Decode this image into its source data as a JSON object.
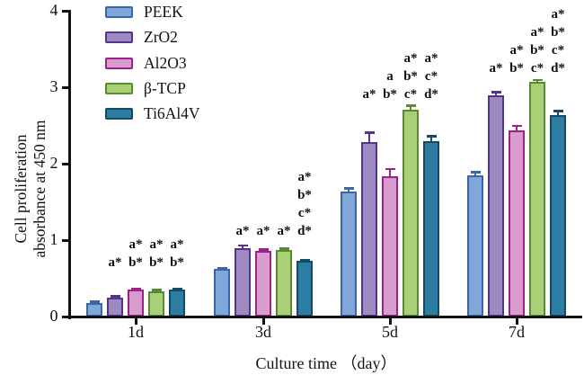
{
  "figure": {
    "background": "#ffffff",
    "axis_color": "#111111",
    "text_color": "#111111"
  },
  "chart_data": {
    "type": "bar",
    "title": "",
    "xlabel": "Culture time （day）",
    "ylabel": "Cell proliferation absorbance at 450 nm",
    "ylabel_lines": [
      "Cell proliferation",
      "absorbance at 450 nm"
    ],
    "ylim": [
      0,
      4
    ],
    "yticks": [
      "0",
      "1",
      "2",
      "3",
      "4"
    ],
    "categories": [
      "1d",
      "3d",
      "5d",
      "7d"
    ],
    "grid": false,
    "legend_position": "inside-top-left",
    "error_bars": "upper, cap ~10px, colored same as bar border",
    "series": [
      {
        "name": "PEEK",
        "fill": "#7fa8d8",
        "border": "#3a66a8",
        "values": [
          0.18,
          0.62,
          1.63,
          1.85
        ],
        "errors": [
          0.015,
          0.02,
          0.05,
          0.04
        ],
        "annotations": [
          [],
          [],
          [],
          []
        ]
      },
      {
        "name": "ZrO2",
        "fill": "#9c8ac0",
        "border": "#53338c",
        "values": [
          0.25,
          0.89,
          2.28,
          2.89
        ],
        "errors": [
          0.015,
          0.04,
          0.13,
          0.05
        ],
        "annotations": [
          [
            "a*"
          ],
          [
            "a*"
          ],
          [
            "a*"
          ],
          [
            "a*"
          ]
        ]
      },
      {
        "name": "Al2O3",
        "fill": "#d89ccf",
        "border": "#9e2089",
        "values": [
          0.35,
          0.86,
          1.83,
          2.44
        ],
        "errors": [
          0.02,
          0.02,
          0.1,
          0.06
        ],
        "annotations": [
          [
            "a*",
            "b*"
          ],
          [
            "a*"
          ],
          [
            "a",
            "b*"
          ],
          [
            "a*",
            "b*"
          ]
        ]
      },
      {
        "name": "β-TCP",
        "fill": "#a9d077",
        "border": "#578a33",
        "values": [
          0.33,
          0.87,
          2.71,
          3.07
        ],
        "errors": [
          0.02,
          0.02,
          0.05,
          0.03
        ],
        "annotations": [
          [
            "a*",
            "b*"
          ],
          [
            "a*"
          ],
          [
            "a*",
            "b*",
            "c*"
          ],
          [
            "a*",
            "b*",
            "c*"
          ]
        ]
      },
      {
        "name": "Ti6Al4V",
        "fill": "#2d7da2",
        "border": "#154a63",
        "values": [
          0.35,
          0.73,
          2.3,
          2.63
        ],
        "errors": [
          0.015,
          0.015,
          0.06,
          0.06
        ],
        "annotations": [
          [
            "a*",
            "b*"
          ],
          [
            "a*",
            "b*",
            "c*",
            "d*"
          ],
          [
            "a*",
            "c*",
            "d*"
          ],
          [
            "a*",
            "b*",
            "c*",
            "d*"
          ]
        ]
      }
    ]
  }
}
